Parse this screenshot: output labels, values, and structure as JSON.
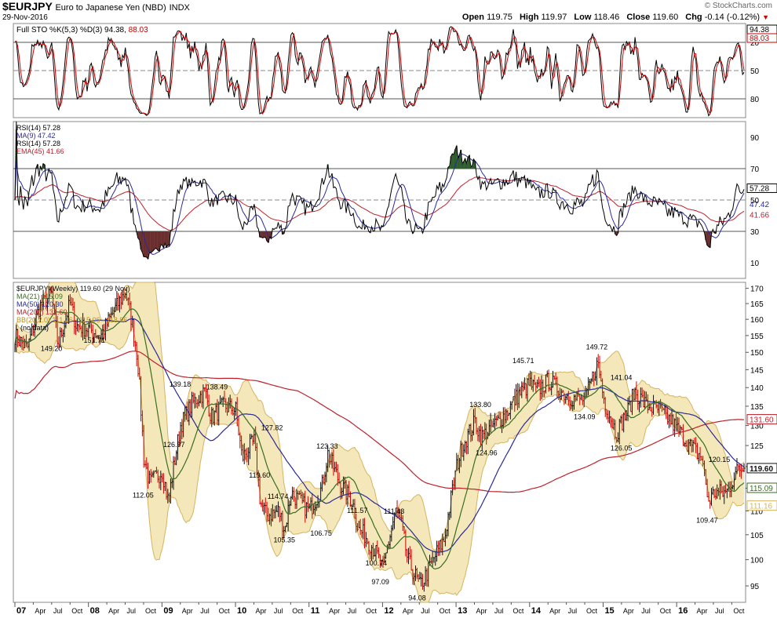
{
  "header": {
    "symbol": "$EURJPY",
    "name": "Euro to Japanese Yen (NBD)",
    "exchange": "INDX",
    "date": "29-Nov-2016",
    "ohlc": {
      "open_label": "Open",
      "open": "119.75",
      "high_label": "High",
      "high": "119.97",
      "low_label": "Low",
      "low": "118.46",
      "close_label": "Close",
      "close": "119.60",
      "chg_label": "Chg",
      "chg": "-0.14 (-0.12%)"
    },
    "watermark": "© StockCharts.com"
  },
  "colors": {
    "price_up": "#111111",
    "price_down": "#cc0000",
    "ma21": "#3a6e1f",
    "ma50": "#2a2a9a",
    "ma200": "#c0202a",
    "bb_fill": "#f2e3ad",
    "bb_line": "#d6b460",
    "sto_k": "#000000",
    "sto_d": "#cc0000",
    "rsi": "#000000",
    "rsi_ma": "#2a2a9a",
    "rsi_ema": "#c0202a",
    "rsi_overbought_fill": "#2e5e2e",
    "rsi_oversold_fill": "#6a2e2e"
  },
  "chart_data": [
    {
      "panel": "stochastic",
      "type": "line",
      "legend": [
        "Full STO %K(5,3) %D(3) 94.38, 88.03"
      ],
      "legend_k": "Full STO %K(5,3) %D(3) 94.38,",
      "legend_d": "88.03",
      "ylim": [
        0,
        100
      ],
      "reference_lines": [
        20,
        50,
        80
      ],
      "yticks": [
        "80",
        "50",
        "20"
      ],
      "last_values": {
        "k": "94.38",
        "d": "88.03"
      }
    },
    {
      "panel": "rsi",
      "type": "line",
      "legend": [
        "RSI(14) 57.28",
        "MA(9) 47.42",
        "RSI(14) 57.28",
        "EMA(45) 41.66"
      ],
      "ylim": [
        0,
        100
      ],
      "reference_lines": [
        30,
        50,
        70
      ],
      "yticks": [
        "90",
        "70",
        "50",
        "30",
        "10"
      ],
      "last_values": {
        "rsi": "57.28",
        "ma9": "47.42",
        "ema45": "41.66"
      }
    },
    {
      "panel": "price",
      "type": "candlestick",
      "title": "$EURJPY (Weekly) 119.60 (29 Nov)",
      "legend": [
        "$EURJPY (Weekly) 119.60 (29 Nov)",
        "MA(21) 115.09",
        "MA(50) 120.30",
        "MA(200) 131.60",
        "BB(20,2.0) 111.16 - 115.06 - 118.96",
        ". (no data)"
      ],
      "ylim": [
        92,
        172
      ],
      "yscale": "log",
      "yticks": [
        95,
        100,
        105,
        110,
        115,
        120,
        125,
        130,
        135,
        140,
        145,
        150,
        155,
        160,
        165,
        170
      ],
      "xticks": [
        "07",
        "Apr",
        "Jul",
        "Oct",
        "08",
        "Apr",
        "Jul",
        "Oct",
        "09",
        "Apr",
        "Jul",
        "Oct",
        "10",
        "Apr",
        "Jul",
        "Oct",
        "11",
        "Apr",
        "Jul",
        "Oct",
        "12",
        "Apr",
        "Jul",
        "Oct",
        "13",
        "Apr",
        "Jul",
        "Oct",
        "14",
        "Apr",
        "Jul",
        "Oct",
        "15",
        "Apr",
        "Jul",
        "Oct",
        "16",
        "Apr",
        "Jul",
        "Oct"
      ],
      "x_start": "2007-01",
      "x_end": "2016-11",
      "path": [
        [
          "2007-01",
          155
        ],
        [
          "2007-03",
          151
        ],
        [
          "2007-05",
          164
        ],
        [
          "2007-07",
          168
        ],
        [
          "2007-08",
          152
        ],
        [
          "2007-10",
          165
        ],
        [
          "2007-11",
          158
        ],
        [
          "2008-01",
          157
        ],
        [
          "2008-03",
          155
        ],
        [
          "2008-05",
          162
        ],
        [
          "2008-07",
          169
        ],
        [
          "2008-08",
          160
        ],
        [
          "2008-09",
          148
        ],
        [
          "2008-10",
          122
        ],
        [
          "2008-11",
          116
        ],
        [
          "2009-01",
          119
        ],
        [
          "2009-02",
          112
        ],
        [
          "2009-04",
          130
        ],
        [
          "2009-06",
          136
        ],
        [
          "2009-08",
          139
        ],
        [
          "2009-09",
          132
        ],
        [
          "2009-11",
          135
        ],
        [
          "2010-01",
          134
        ],
        [
          "2010-02",
          122
        ],
        [
          "2010-04",
          126
        ],
        [
          "2010-05",
          112
        ],
        [
          "2010-06",
          109
        ],
        [
          "2010-08",
          110
        ],
        [
          "2010-09",
          106
        ],
        [
          "2010-10",
          114
        ],
        [
          "2011-01",
          110
        ],
        [
          "2011-03",
          115
        ],
        [
          "2011-04",
          123
        ],
        [
          "2011-06",
          116
        ],
        [
          "2011-08",
          112
        ],
        [
          "2011-09",
          106
        ],
        [
          "2011-10",
          105
        ],
        [
          "2011-12",
          101
        ],
        [
          "2012-01",
          98
        ],
        [
          "2012-03",
          110
        ],
        [
          "2012-04",
          107
        ],
        [
          "2012-05",
          100
        ],
        [
          "2012-07",
          95
        ],
        [
          "2012-08",
          97
        ],
        [
          "2012-10",
          102
        ],
        [
          "2012-11",
          104
        ],
        [
          "2013-01",
          120
        ],
        [
          "2013-02",
          125
        ],
        [
          "2013-04",
          131
        ],
        [
          "2013-05",
          127
        ],
        [
          "2013-07",
          130
        ],
        [
          "2013-09",
          133
        ],
        [
          "2013-11",
          138
        ],
        [
          "2014-01",
          141
        ],
        [
          "2014-02",
          139
        ],
        [
          "2014-04",
          142
        ],
        [
          "2014-06",
          139
        ],
        [
          "2014-08",
          137
        ],
        [
          "2014-10",
          137
        ],
        [
          "2014-12",
          147
        ],
        [
          "2015-01",
          137
        ],
        [
          "2015-03",
          128
        ],
        [
          "2015-05",
          134
        ],
        [
          "2015-06",
          139
        ],
        [
          "2015-08",
          135
        ],
        [
          "2015-10",
          134
        ],
        [
          "2015-12",
          131
        ],
        [
          "2016-01",
          129
        ],
        [
          "2016-03",
          125
        ],
        [
          "2016-05",
          122
        ],
        [
          "2016-06",
          112
        ],
        [
          "2016-07",
          114
        ],
        [
          "2016-09",
          114
        ],
        [
          "2016-10",
          117
        ],
        [
          "2016-11",
          119.6
        ]
      ],
      "annotations": [
        {
          "date": "2007-07",
          "text": "149.20",
          "value": 149.2
        },
        {
          "date": "2008-02",
          "text": "151.71",
          "value": 151.71
        },
        {
          "date": "2008-10",
          "text": "112.05",
          "value": 112.05
        },
        {
          "date": "2009-03",
          "text": "126.97",
          "value": 126.97
        },
        {
          "date": "2009-04",
          "text": "139.18",
          "value": 139.18
        },
        {
          "date": "2009-10",
          "text": "138.49",
          "value": 138.49
        },
        {
          "date": "2010-05",
          "text": "119.60",
          "value": 119.6
        },
        {
          "date": "2010-07",
          "text": "127.82",
          "value": 127.82
        },
        {
          "date": "2010-08",
          "text": "114.74",
          "value": 114.74
        },
        {
          "date": "2010-09",
          "text": "105.35",
          "value": 105.35
        },
        {
          "date": "2011-03",
          "text": "106.75",
          "value": 106.75
        },
        {
          "date": "2011-04",
          "text": "123.33",
          "value": 123.33
        },
        {
          "date": "2011-09",
          "text": "111.57",
          "value": 111.57
        },
        {
          "date": "2011-12",
          "text": "100.74",
          "value": 100.74
        },
        {
          "date": "2012-01",
          "text": "97.09",
          "value": 97.09
        },
        {
          "date": "2012-03",
          "text": "111.43",
          "value": 111.43
        },
        {
          "date": "2012-07",
          "text": "94.08",
          "value": 94.08
        },
        {
          "date": "2013-05",
          "text": "133.80",
          "value": 133.8
        },
        {
          "date": "2013-06",
          "text": "124.96",
          "value": 124.96
        },
        {
          "date": "2013-12",
          "text": "145.71",
          "value": 145.71
        },
        {
          "date": "2014-10",
          "text": "134.09",
          "value": 134.09
        },
        {
          "date": "2014-12",
          "text": "149.72",
          "value": 149.72
        },
        {
          "date": "2015-04",
          "text": "141.04",
          "value": 141.04
        },
        {
          "date": "2015-04",
          "text": "126.05",
          "value": 126.05
        },
        {
          "date": "2016-06",
          "text": "109.47",
          "value": 109.47
        },
        {
          "date": "2016-08",
          "text": "120.15",
          "value": 120.15
        }
      ],
      "right_labels": [
        {
          "text": "131.60",
          "value": 131.6,
          "color_key": "ma200"
        },
        {
          "text": "119.60",
          "value": 119.6,
          "color_key": "price_up",
          "emphasis": true
        },
        {
          "text": "115.09",
          "value": 115.09,
          "color_key": "ma21"
        },
        {
          "text": "111.16",
          "value": 111.16,
          "color_key": "bb_line"
        }
      ],
      "grid": false
    }
  ]
}
